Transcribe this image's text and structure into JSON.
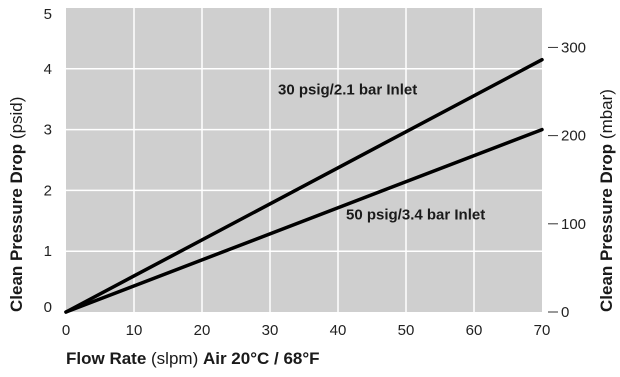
{
  "chart_data": {
    "type": "line",
    "x": [
      0,
      70
    ],
    "xlim": [
      0,
      70
    ],
    "ylim": [
      0,
      5
    ],
    "xticks": [
      "0",
      "10",
      "20",
      "30",
      "40",
      "50",
      "60",
      "70"
    ],
    "yticks": [
      "0",
      "1",
      "2",
      "3",
      "4",
      "5"
    ],
    "y2lim": [
      0,
      344.7
    ],
    "y2ticks": [
      {
        "label": "0",
        "value": 0
      },
      {
        "label": "100",
        "value": 100
      },
      {
        "label": "200",
        "value": 200
      },
      {
        "label": "300",
        "value": 300
      }
    ],
    "grid": true,
    "background_color": "#cfcfcf",
    "grid_color": "#ffffff",
    "line_color": "#000000",
    "xlabel": {
      "bold1": "Flow Rate",
      "normal": " (slpm) ",
      "bold2": "Air 20°C / 68°F"
    },
    "ylabel": {
      "bold": "Clean Pressure Drop",
      "normal": " (psid)"
    },
    "y2label": {
      "bold": "Clean Pressure Drop",
      "normal": " (mbar)"
    },
    "series": [
      {
        "name": "30 psig/2.1 bar Inlet",
        "values": [
          0,
          4.15
        ]
      },
      {
        "name": "50 psig/3.4 bar Inlet",
        "values": [
          0,
          3.0
        ]
      }
    ]
  }
}
